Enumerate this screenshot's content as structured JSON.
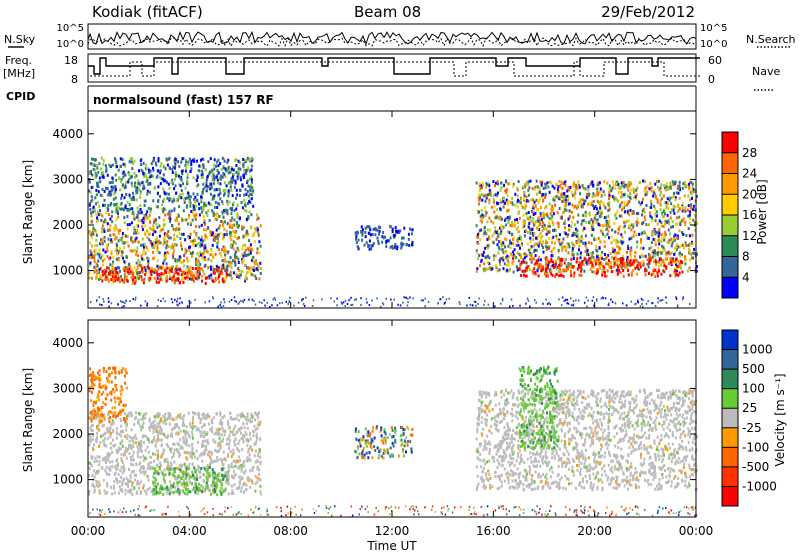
{
  "header": {
    "station": "Kodiak (fitACF)",
    "beam": "Beam 08",
    "date": "29/Feb/2012"
  },
  "left_labels": {
    "nsky": "N.Sky",
    "freq_line1": "Freq.",
    "freq_line2": "[MHz]",
    "cpid": "CPID"
  },
  "right_labels": {
    "nsearch": "N.Search",
    "nave": "Nave"
  },
  "noise_panel": {
    "left_ticks": [
      "10^5",
      "10^0"
    ],
    "right_ticks": [
      "10^5",
      "10^0"
    ]
  },
  "freq_panel": {
    "left_ticks": [
      "18",
      "8"
    ],
    "right_ticks": [
      "60",
      "0"
    ]
  },
  "cpid_text": "normalsound (fast) 157 RF",
  "ylabel": "Slant Range [km]",
  "xlabel": "Time UT",
  "x_ticks": [
    "00:00",
    "04:00",
    "08:00",
    "12:00",
    "16:00",
    "20:00",
    "00:00"
  ],
  "y_ticks": [
    "1000",
    "2000",
    "3000",
    "4000"
  ],
  "power_colorbar": {
    "label": "Power [dB]",
    "ticks": [
      "28",
      "24",
      "20",
      "16",
      "12",
      "8",
      "4"
    ],
    "colors": [
      "#ff0000",
      "#ff6600",
      "#ff9900",
      "#ffcc00",
      "#99cc33",
      "#2e8b57",
      "#336699",
      "#0000ff"
    ]
  },
  "velocity_colorbar": {
    "label": "Velocity [m s⁻¹]",
    "ticks": [
      "1000",
      "500",
      "100",
      "25",
      "-25",
      "-100",
      "-500",
      "-1000"
    ],
    "colors": [
      "#0033cc",
      "#336699",
      "#2e8b57",
      "#66cc33",
      "#bbbbbb",
      "#ff9900",
      "#ff6600",
      "#ff3300",
      "#ff0000"
    ]
  },
  "chart_data": [
    {
      "type": "heatmap",
      "title": "Power",
      "xlabel": "Time UT",
      "ylabel": "Slant Range [km]",
      "xlim": [
        0,
        24
      ],
      "ylim": [
        180,
        4500
      ],
      "colorbar_label": "Power [dB]",
      "colorbar_range": [
        0,
        32
      ],
      "regions": [
        {
          "t0": 0.0,
          "t1": 6.8,
          "r0": 800,
          "r1": 2300,
          "level": "mixed"
        },
        {
          "t0": 0.5,
          "t1": 5.5,
          "r0": 750,
          "r1": 1100,
          "level": "high"
        },
        {
          "t0": 0.0,
          "t1": 6.5,
          "r0": 2300,
          "r1": 3500,
          "level": "low-mid"
        },
        {
          "t0": 10.5,
          "t1": 12.8,
          "r0": 1500,
          "r1": 2000,
          "level": "low"
        },
        {
          "t0": 15.3,
          "t1": 24.0,
          "r0": 1000,
          "r1": 3000,
          "level": "mixed"
        },
        {
          "t0": 17.0,
          "t1": 23.5,
          "r0": 900,
          "r1": 1300,
          "level": "high"
        }
      ]
    },
    {
      "type": "heatmap",
      "title": "Velocity",
      "xlabel": "Time UT",
      "ylabel": "Slant Range [km]",
      "xlim": [
        0,
        24
      ],
      "ylim": [
        180,
        4500
      ],
      "colorbar_label": "Velocity [m s⁻¹]",
      "colorbar_range": [
        -1000,
        1000
      ],
      "regions": [
        {
          "t0": 0.0,
          "t1": 6.8,
          "r0": 700,
          "r1": 2500,
          "level": "near-zero"
        },
        {
          "t0": 2.5,
          "t1": 5.5,
          "r0": 700,
          "r1": 1300,
          "level": "positive-small"
        },
        {
          "t0": 0.0,
          "t1": 1.5,
          "r0": 2300,
          "r1": 3500,
          "level": "negative"
        },
        {
          "t0": 10.5,
          "t1": 12.8,
          "r0": 1500,
          "r1": 2200,
          "level": "mixed"
        },
        {
          "t0": 15.3,
          "t1": 24.0,
          "r0": 800,
          "r1": 3000,
          "level": "near-zero"
        },
        {
          "t0": 17.0,
          "t1": 18.5,
          "r0": 1700,
          "r1": 3500,
          "level": "positive-small"
        }
      ]
    }
  ]
}
